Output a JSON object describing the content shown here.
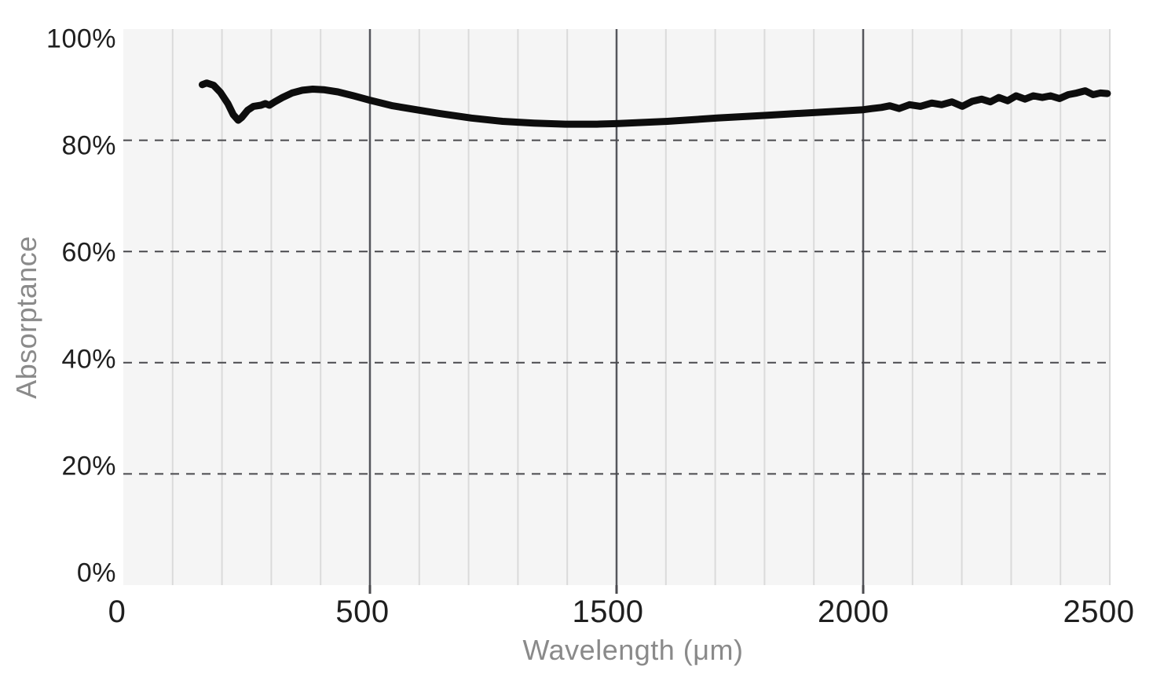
{
  "chart_data": {
    "type": "line",
    "title": "",
    "xlabel": "Wavelength (μm)",
    "ylabel": "Absorptance",
    "ylim": [
      0,
      100
    ],
    "x_scale": "piecewise-linear-between-equally-spaced-ticks",
    "x_ticks": {
      "values": [
        0,
        500,
        1500,
        2000,
        2500
      ],
      "labels": [
        "0",
        "500",
        "1500",
        "2000",
        "2500"
      ]
    },
    "y_ticks": {
      "values": [
        0,
        20,
        40,
        60,
        80,
        100
      ],
      "labels": [
        "0%",
        "20%",
        "40%",
        "60%",
        "80%",
        "100%"
      ]
    },
    "minor_x_divisions_per_interval": 5,
    "grid": {
      "horizontal": "dashed",
      "vertical": "solid",
      "legend": "none"
    },
    "series": [
      {
        "name": "absorptance",
        "x": [
          160,
          169,
          183,
          197,
          212,
          223,
          233,
          240,
          252,
          264,
          279,
          288,
          296,
          307,
          323,
          342,
          363,
          384,
          406,
          435,
          467,
          500,
          592,
          688,
          783,
          911,
          1038,
          1165,
          1293,
          1420,
          1500,
          1603,
          1704,
          1806,
          1903,
          2000,
          2018,
          2037,
          2054,
          2073,
          2094,
          2116,
          2139,
          2159,
          2180,
          2201,
          2221,
          2240,
          2258,
          2275,
          2293,
          2310,
          2328,
          2345,
          2363,
          2380,
          2398,
          2416,
          2433,
          2450,
          2466,
          2481,
          2495
        ],
        "y": [
          90.0,
          90.3,
          89.9,
          88.6,
          86.6,
          84.6,
          83.6,
          84.1,
          85.4,
          86.1,
          86.3,
          86.6,
          86.3,
          86.9,
          87.7,
          88.5,
          89.0,
          89.2,
          89.1,
          88.7,
          88.0,
          87.2,
          86.2,
          85.5,
          84.8,
          84.0,
          83.4,
          83.1,
          82.9,
          82.9,
          83.0,
          83.4,
          84.0,
          84.5,
          85.0,
          85.5,
          85.7,
          85.9,
          86.2,
          85.7,
          86.4,
          86.1,
          86.7,
          86.4,
          86.9,
          86.1,
          87.0,
          87.4,
          86.9,
          87.7,
          87.1,
          88.0,
          87.4,
          88.0,
          87.7,
          88.0,
          87.5,
          88.2,
          88.5,
          88.9,
          88.2,
          88.5,
          88.4
        ]
      }
    ]
  },
  "colors": {
    "background": "#ffffff",
    "plot_background": "#f5f5f5",
    "minor_gridline": "#dadada",
    "major_gridline": "#55565c",
    "dashed_gridline": "#4a4a4e",
    "axis_tick": "#4a4a4e",
    "curve": "#0d0d0d",
    "tick_label": "#1f1f1f",
    "axis_title": "#8a8a8a"
  }
}
